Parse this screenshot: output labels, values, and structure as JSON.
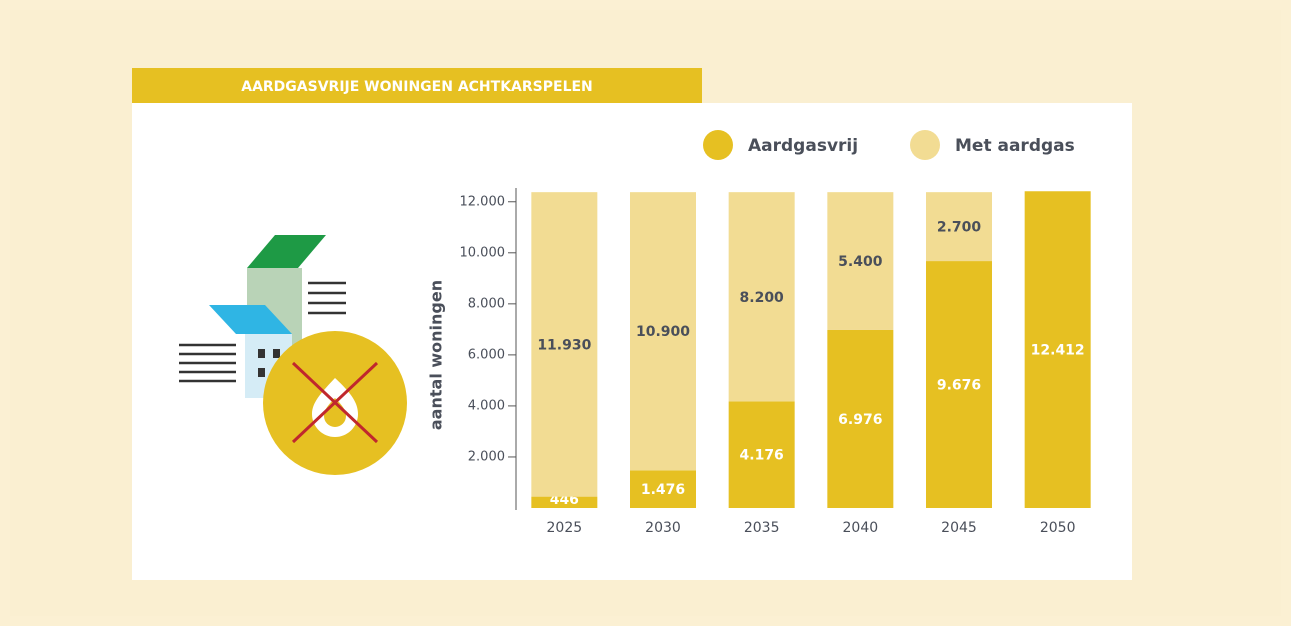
{
  "chart_data": {
    "type": "stacked_bar",
    "title": "AARDGASVRIJE WONINGEN ACHTKARSPELEN",
    "y_label": "aantal woningen",
    "categories": [
      "2025",
      "2030",
      "2035",
      "2040",
      "2045",
      "2050"
    ],
    "series": [
      {
        "name": "Aardgasvrij",
        "color": "#e6c022",
        "values": [
          446,
          1476,
          4176,
          6976,
          9676,
          12412
        ],
        "value_labels": [
          "446",
          "1.476",
          "4.176",
          "6.976",
          "9.676",
          "12.412"
        ]
      },
      {
        "name": "Met aardgas",
        "color": "#f2dc93",
        "values": [
          11930,
          10900,
          8200,
          5400,
          2700,
          null
        ],
        "value_labels": [
          "11.930",
          "10.900",
          "8.200",
          "5.400",
          "2.700",
          null
        ]
      }
    ],
    "ylim": [
      0,
      12500
    ],
    "yticks": [
      {
        "value": 2000,
        "label": "2.000"
      },
      {
        "value": 4000,
        "label": "4.000"
      },
      {
        "value": 6000,
        "label": "6.000"
      },
      {
        "value": 8000,
        "label": "8.000"
      },
      {
        "value": 10000,
        "label": "10.000"
      },
      {
        "value": 12000,
        "label": "12.000"
      }
    ],
    "legend": "top-right"
  }
}
